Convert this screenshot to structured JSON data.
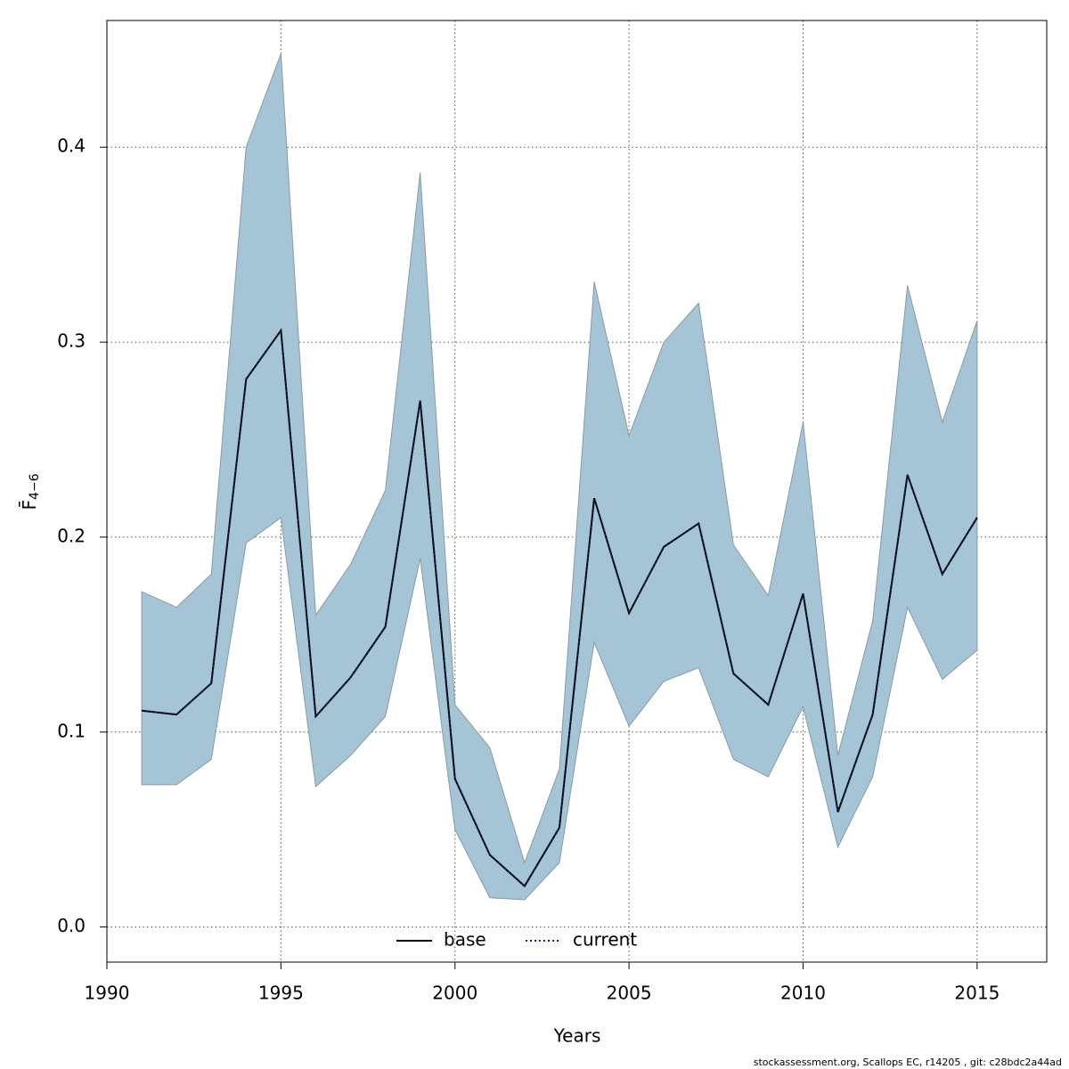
{
  "chart_data": {
    "type": "line",
    "xlabel": "Years",
    "ylabel": "F̄",
    "ylabel_subscript": "4−6",
    "footer": "stockassessment.org, Scallops EC, r14205 , git: c28bdc2a44ad",
    "x": [
      1991,
      1992,
      1993,
      1994,
      1995,
      1996,
      1997,
      1998,
      1999,
      2000,
      2001,
      2002,
      2003,
      2004,
      2005,
      2006,
      2007,
      2008,
      2009,
      2010,
      2011,
      2012,
      2013,
      2014,
      2015
    ],
    "series": [
      {
        "name": "base",
        "color": "#000000",
        "dash": "solid",
        "values": [
          0.111,
          0.109,
          0.125,
          0.281,
          0.306,
          0.108,
          0.128,
          0.154,
          0.27,
          0.076,
          0.037,
          0.021,
          0.051,
          0.22,
          0.161,
          0.195,
          0.207,
          0.13,
          0.114,
          0.171,
          0.059,
          0.109,
          0.232,
          0.181,
          0.21
        ]
      },
      {
        "name": "current",
        "color": "#0b2a4a",
        "dash": "dotted",
        "values": [
          0.111,
          0.109,
          0.125,
          0.281,
          0.306,
          0.108,
          0.128,
          0.154,
          0.27,
          0.076,
          0.037,
          0.021,
          0.051,
          0.22,
          0.161,
          0.195,
          0.207,
          0.13,
          0.114,
          0.171,
          0.059,
          0.109,
          0.232,
          0.181,
          0.21
        ]
      }
    ],
    "band": {
      "color": "#a5c4d6",
      "upper": [
        0.172,
        0.164,
        0.181,
        0.4,
        0.448,
        0.16,
        0.186,
        0.224,
        0.387,
        0.114,
        0.092,
        0.033,
        0.081,
        0.331,
        0.252,
        0.3,
        0.32,
        0.196,
        0.17,
        0.259,
        0.088,
        0.157,
        0.329,
        0.259,
        0.311
      ],
      "lower": [
        0.073,
        0.073,
        0.086,
        0.197,
        0.21,
        0.072,
        0.088,
        0.108,
        0.189,
        0.05,
        0.015,
        0.014,
        0.033,
        0.146,
        0.103,
        0.126,
        0.133,
        0.086,
        0.077,
        0.113,
        0.041,
        0.077,
        0.164,
        0.127,
        0.142
      ]
    },
    "xlim": [
      1990,
      2017
    ],
    "xticks": [
      1990,
      1995,
      2000,
      2005,
      2010,
      2015
    ],
    "ylim": [
      -0.018,
      0.465
    ],
    "yticks": [
      {
        "value": 0,
        "label": "0.0"
      },
      0.1,
      0.2,
      0.3,
      0.4
    ],
    "grid": true,
    "legend": "bottom"
  }
}
